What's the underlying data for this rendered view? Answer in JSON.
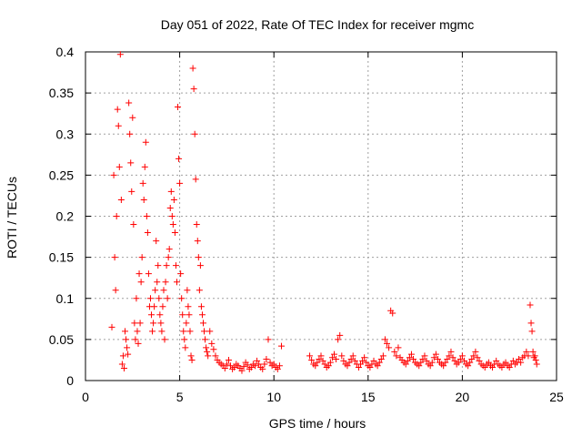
{
  "chart_data": {
    "type": "scatter",
    "title": "Day 051 of 2022, Rate Of TEC Index for receiver mgmc",
    "xlabel": "GPS time / hours",
    "ylabel": "ROTI / TECUs",
    "xlim": [
      0,
      25
    ],
    "ylim": [
      0,
      0.4
    ],
    "xticks": [
      0,
      5,
      10,
      15,
      20,
      25
    ],
    "xtick_labels": [
      "0",
      "5",
      "10",
      "15",
      "20",
      "25"
    ],
    "yticks": [
      0,
      0.05,
      0.1,
      0.15,
      0.2,
      0.25,
      0.3,
      0.35,
      0.4
    ],
    "ytick_labels": [
      "0",
      "0.05",
      "0.1",
      "0.15",
      "0.2",
      "0.25",
      "0.3",
      "0.35",
      "0.4"
    ],
    "grid": true,
    "marker": "+",
    "color": "#ff0000",
    "series": [
      {
        "name": "ROTI",
        "points": [
          [
            1.4,
            0.065
          ],
          [
            1.5,
            0.25
          ],
          [
            1.55,
            0.15
          ],
          [
            1.6,
            0.11
          ],
          [
            1.65,
            0.2
          ],
          [
            1.7,
            0.33
          ],
          [
            1.75,
            0.31
          ],
          [
            1.8,
            0.26
          ],
          [
            1.85,
            0.397
          ],
          [
            1.9,
            0.22
          ],
          [
            1.95,
            0.02
          ],
          [
            2.0,
            0.03
          ],
          [
            2.05,
            0.015
          ],
          [
            2.1,
            0.06
          ],
          [
            2.15,
            0.05
          ],
          [
            2.2,
            0.04
          ],
          [
            2.25,
            0.032
          ],
          [
            2.3,
            0.338
          ],
          [
            2.35,
            0.3
          ],
          [
            2.4,
            0.265
          ],
          [
            2.45,
            0.23
          ],
          [
            2.5,
            0.32
          ],
          [
            2.55,
            0.19
          ],
          [
            2.6,
            0.07
          ],
          [
            2.65,
            0.05
          ],
          [
            2.7,
            0.1
          ],
          [
            2.75,
            0.06
          ],
          [
            2.8,
            0.045
          ],
          [
            2.85,
            0.13
          ],
          [
            2.9,
            0.07
          ],
          [
            2.95,
            0.12
          ],
          [
            3.0,
            0.15
          ],
          [
            3.05,
            0.24
          ],
          [
            3.1,
            0.22
          ],
          [
            3.15,
            0.26
          ],
          [
            3.2,
            0.29
          ],
          [
            3.25,
            0.2
          ],
          [
            3.3,
            0.18
          ],
          [
            3.35,
            0.13
          ],
          [
            3.4,
            0.09
          ],
          [
            3.45,
            0.1
          ],
          [
            3.5,
            0.08
          ],
          [
            3.55,
            0.06
          ],
          [
            3.6,
            0.07
          ],
          [
            3.65,
            0.09
          ],
          [
            3.7,
            0.11
          ],
          [
            3.75,
            0.17
          ],
          [
            3.8,
            0.12
          ],
          [
            3.85,
            0.14
          ],
          [
            3.9,
            0.1
          ],
          [
            3.95,
            0.08
          ],
          [
            4.0,
            0.07
          ],
          [
            4.05,
            0.06
          ],
          [
            4.1,
            0.09
          ],
          [
            4.15,
            0.11
          ],
          [
            4.2,
            0.05
          ],
          [
            4.25,
            0.12
          ],
          [
            4.3,
            0.14
          ],
          [
            4.35,
            0.1
          ],
          [
            4.4,
            0.15
          ],
          [
            4.45,
            0.16
          ],
          [
            4.5,
            0.21
          ],
          [
            4.55,
            0.23
          ],
          [
            4.6,
            0.2
          ],
          [
            4.65,
            0.19
          ],
          [
            4.7,
            0.22
          ],
          [
            4.75,
            0.18
          ],
          [
            4.8,
            0.14
          ],
          [
            4.85,
            0.12
          ],
          [
            4.9,
            0.333
          ],
          [
            4.95,
            0.27
          ],
          [
            5.0,
            0.24
          ],
          [
            5.05,
            0.13
          ],
          [
            5.1,
            0.1
          ],
          [
            5.15,
            0.08
          ],
          [
            5.2,
            0.06
          ],
          [
            5.25,
            0.05
          ],
          [
            5.3,
            0.04
          ],
          [
            5.35,
            0.07
          ],
          [
            5.4,
            0.11
          ],
          [
            5.45,
            0.09
          ],
          [
            5.5,
            0.08
          ],
          [
            5.55,
            0.06
          ],
          [
            5.6,
            0.03
          ],
          [
            5.65,
            0.025
          ],
          [
            5.7,
            0.38
          ],
          [
            5.75,
            0.355
          ],
          [
            5.8,
            0.3
          ],
          [
            5.85,
            0.245
          ],
          [
            5.9,
            0.19
          ],
          [
            5.95,
            0.17
          ],
          [
            6.0,
            0.15
          ],
          [
            6.05,
            0.11
          ],
          [
            6.1,
            0.14
          ],
          [
            6.15,
            0.09
          ],
          [
            6.2,
            0.08
          ],
          [
            6.25,
            0.07
          ],
          [
            6.3,
            0.06
          ],
          [
            6.35,
            0.05
          ],
          [
            6.4,
            0.04
          ],
          [
            6.45,
            0.035
          ],
          [
            6.5,
            0.03
          ],
          [
            6.6,
            0.06
          ],
          [
            6.7,
            0.045
          ],
          [
            6.8,
            0.038
          ],
          [
            6.9,
            0.03
          ],
          [
            7.0,
            0.025
          ],
          [
            7.1,
            0.022
          ],
          [
            7.2,
            0.02
          ],
          [
            7.3,
            0.018
          ],
          [
            7.4,
            0.015
          ],
          [
            7.5,
            0.02
          ],
          [
            7.6,
            0.025
          ],
          [
            7.7,
            0.018
          ],
          [
            7.8,
            0.014
          ],
          [
            7.9,
            0.016
          ],
          [
            8.0,
            0.02
          ],
          [
            8.1,
            0.018
          ],
          [
            8.2,
            0.015
          ],
          [
            8.3,
            0.012
          ],
          [
            8.4,
            0.017
          ],
          [
            8.5,
            0.022
          ],
          [
            8.6,
            0.019
          ],
          [
            8.7,
            0.014
          ],
          [
            8.8,
            0.016
          ],
          [
            8.9,
            0.02
          ],
          [
            9.0,
            0.018
          ],
          [
            9.1,
            0.024
          ],
          [
            9.2,
            0.02
          ],
          [
            9.3,
            0.016
          ],
          [
            9.4,
            0.014
          ],
          [
            9.5,
            0.02
          ],
          [
            9.6,
            0.026
          ],
          [
            9.7,
            0.05
          ],
          [
            9.8,
            0.022
          ],
          [
            9.9,
            0.018
          ],
          [
            10.0,
            0.02
          ],
          [
            10.1,
            0.016
          ],
          [
            10.2,
            0.014
          ],
          [
            10.3,
            0.018
          ],
          [
            10.4,
            0.042
          ],
          [
            11.9,
            0.03
          ],
          [
            12.0,
            0.025
          ],
          [
            12.1,
            0.02
          ],
          [
            12.2,
            0.018
          ],
          [
            12.3,
            0.022
          ],
          [
            12.4,
            0.026
          ],
          [
            12.5,
            0.03
          ],
          [
            12.6,
            0.024
          ],
          [
            12.7,
            0.02
          ],
          [
            12.8,
            0.016
          ],
          [
            12.9,
            0.018
          ],
          [
            13.0,
            0.022
          ],
          [
            13.1,
            0.028
          ],
          [
            13.2,
            0.032
          ],
          [
            13.3,
            0.026
          ],
          [
            13.4,
            0.05
          ],
          [
            13.5,
            0.055
          ],
          [
            13.6,
            0.03
          ],
          [
            13.7,
            0.024
          ],
          [
            13.8,
            0.02
          ],
          [
            13.9,
            0.018
          ],
          [
            14.0,
            0.022
          ],
          [
            14.1,
            0.026
          ],
          [
            14.2,
            0.03
          ],
          [
            14.3,
            0.024
          ],
          [
            14.4,
            0.02
          ],
          [
            14.5,
            0.016
          ],
          [
            14.6,
            0.02
          ],
          [
            14.7,
            0.024
          ],
          [
            14.8,
            0.028
          ],
          [
            14.9,
            0.022
          ],
          [
            15.0,
            0.018
          ],
          [
            15.1,
            0.016
          ],
          [
            15.2,
            0.02
          ],
          [
            15.3,
            0.024
          ],
          [
            15.4,
            0.02
          ],
          [
            15.5,
            0.018
          ],
          [
            15.6,
            0.022
          ],
          [
            15.7,
            0.026
          ],
          [
            15.8,
            0.03
          ],
          [
            15.9,
            0.05
          ],
          [
            16.0,
            0.045
          ],
          [
            16.1,
            0.04
          ],
          [
            16.2,
            0.085
          ],
          [
            16.3,
            0.082
          ],
          [
            16.4,
            0.035
          ],
          [
            16.5,
            0.03
          ],
          [
            16.6,
            0.04
          ],
          [
            16.7,
            0.028
          ],
          [
            16.8,
            0.025
          ],
          [
            16.9,
            0.022
          ],
          [
            17.0,
            0.02
          ],
          [
            17.1,
            0.024
          ],
          [
            17.2,
            0.028
          ],
          [
            17.3,
            0.032
          ],
          [
            17.4,
            0.026
          ],
          [
            17.5,
            0.022
          ],
          [
            17.6,
            0.02
          ],
          [
            17.7,
            0.018
          ],
          [
            17.8,
            0.022
          ],
          [
            17.9,
            0.026
          ],
          [
            18.0,
            0.03
          ],
          [
            18.1,
            0.024
          ],
          [
            18.2,
            0.02
          ],
          [
            18.3,
            0.018
          ],
          [
            18.4,
            0.022
          ],
          [
            18.5,
            0.028
          ],
          [
            18.6,
            0.032
          ],
          [
            18.7,
            0.026
          ],
          [
            18.8,
            0.022
          ],
          [
            18.9,
            0.02
          ],
          [
            19.0,
            0.018
          ],
          [
            19.1,
            0.022
          ],
          [
            19.2,
            0.026
          ],
          [
            19.3,
            0.03
          ],
          [
            19.4,
            0.035
          ],
          [
            19.5,
            0.028
          ],
          [
            19.6,
            0.024
          ],
          [
            19.7,
            0.02
          ],
          [
            19.8,
            0.022
          ],
          [
            19.9,
            0.026
          ],
          [
            20.0,
            0.03
          ],
          [
            20.1,
            0.024
          ],
          [
            20.2,
            0.02
          ],
          [
            20.3,
            0.018
          ],
          [
            20.4,
            0.022
          ],
          [
            20.5,
            0.026
          ],
          [
            20.6,
            0.03
          ],
          [
            20.7,
            0.035
          ],
          [
            20.8,
            0.028
          ],
          [
            20.9,
            0.024
          ],
          [
            21.0,
            0.02
          ],
          [
            21.1,
            0.018
          ],
          [
            21.2,
            0.016
          ],
          [
            21.3,
            0.02
          ],
          [
            21.4,
            0.022
          ],
          [
            21.5,
            0.018
          ],
          [
            21.6,
            0.016
          ],
          [
            21.7,
            0.02
          ],
          [
            21.8,
            0.024
          ],
          [
            21.9,
            0.02
          ],
          [
            22.0,
            0.018
          ],
          [
            22.1,
            0.016
          ],
          [
            22.2,
            0.02
          ],
          [
            22.3,
            0.022
          ],
          [
            22.4,
            0.018
          ],
          [
            22.5,
            0.016
          ],
          [
            22.6,
            0.02
          ],
          [
            22.7,
            0.024
          ],
          [
            22.8,
            0.02
          ],
          [
            22.9,
            0.022
          ],
          [
            23.0,
            0.026
          ],
          [
            23.1,
            0.022
          ],
          [
            23.2,
            0.028
          ],
          [
            23.3,
            0.03
          ],
          [
            23.4,
            0.035
          ],
          [
            23.5,
            0.03
          ],
          [
            23.6,
            0.092
          ],
          [
            23.65,
            0.07
          ],
          [
            23.7,
            0.06
          ],
          [
            23.75,
            0.035
          ],
          [
            23.8,
            0.028
          ],
          [
            23.85,
            0.03
          ],
          [
            23.9,
            0.025
          ],
          [
            23.95,
            0.02
          ]
        ]
      }
    ]
  }
}
